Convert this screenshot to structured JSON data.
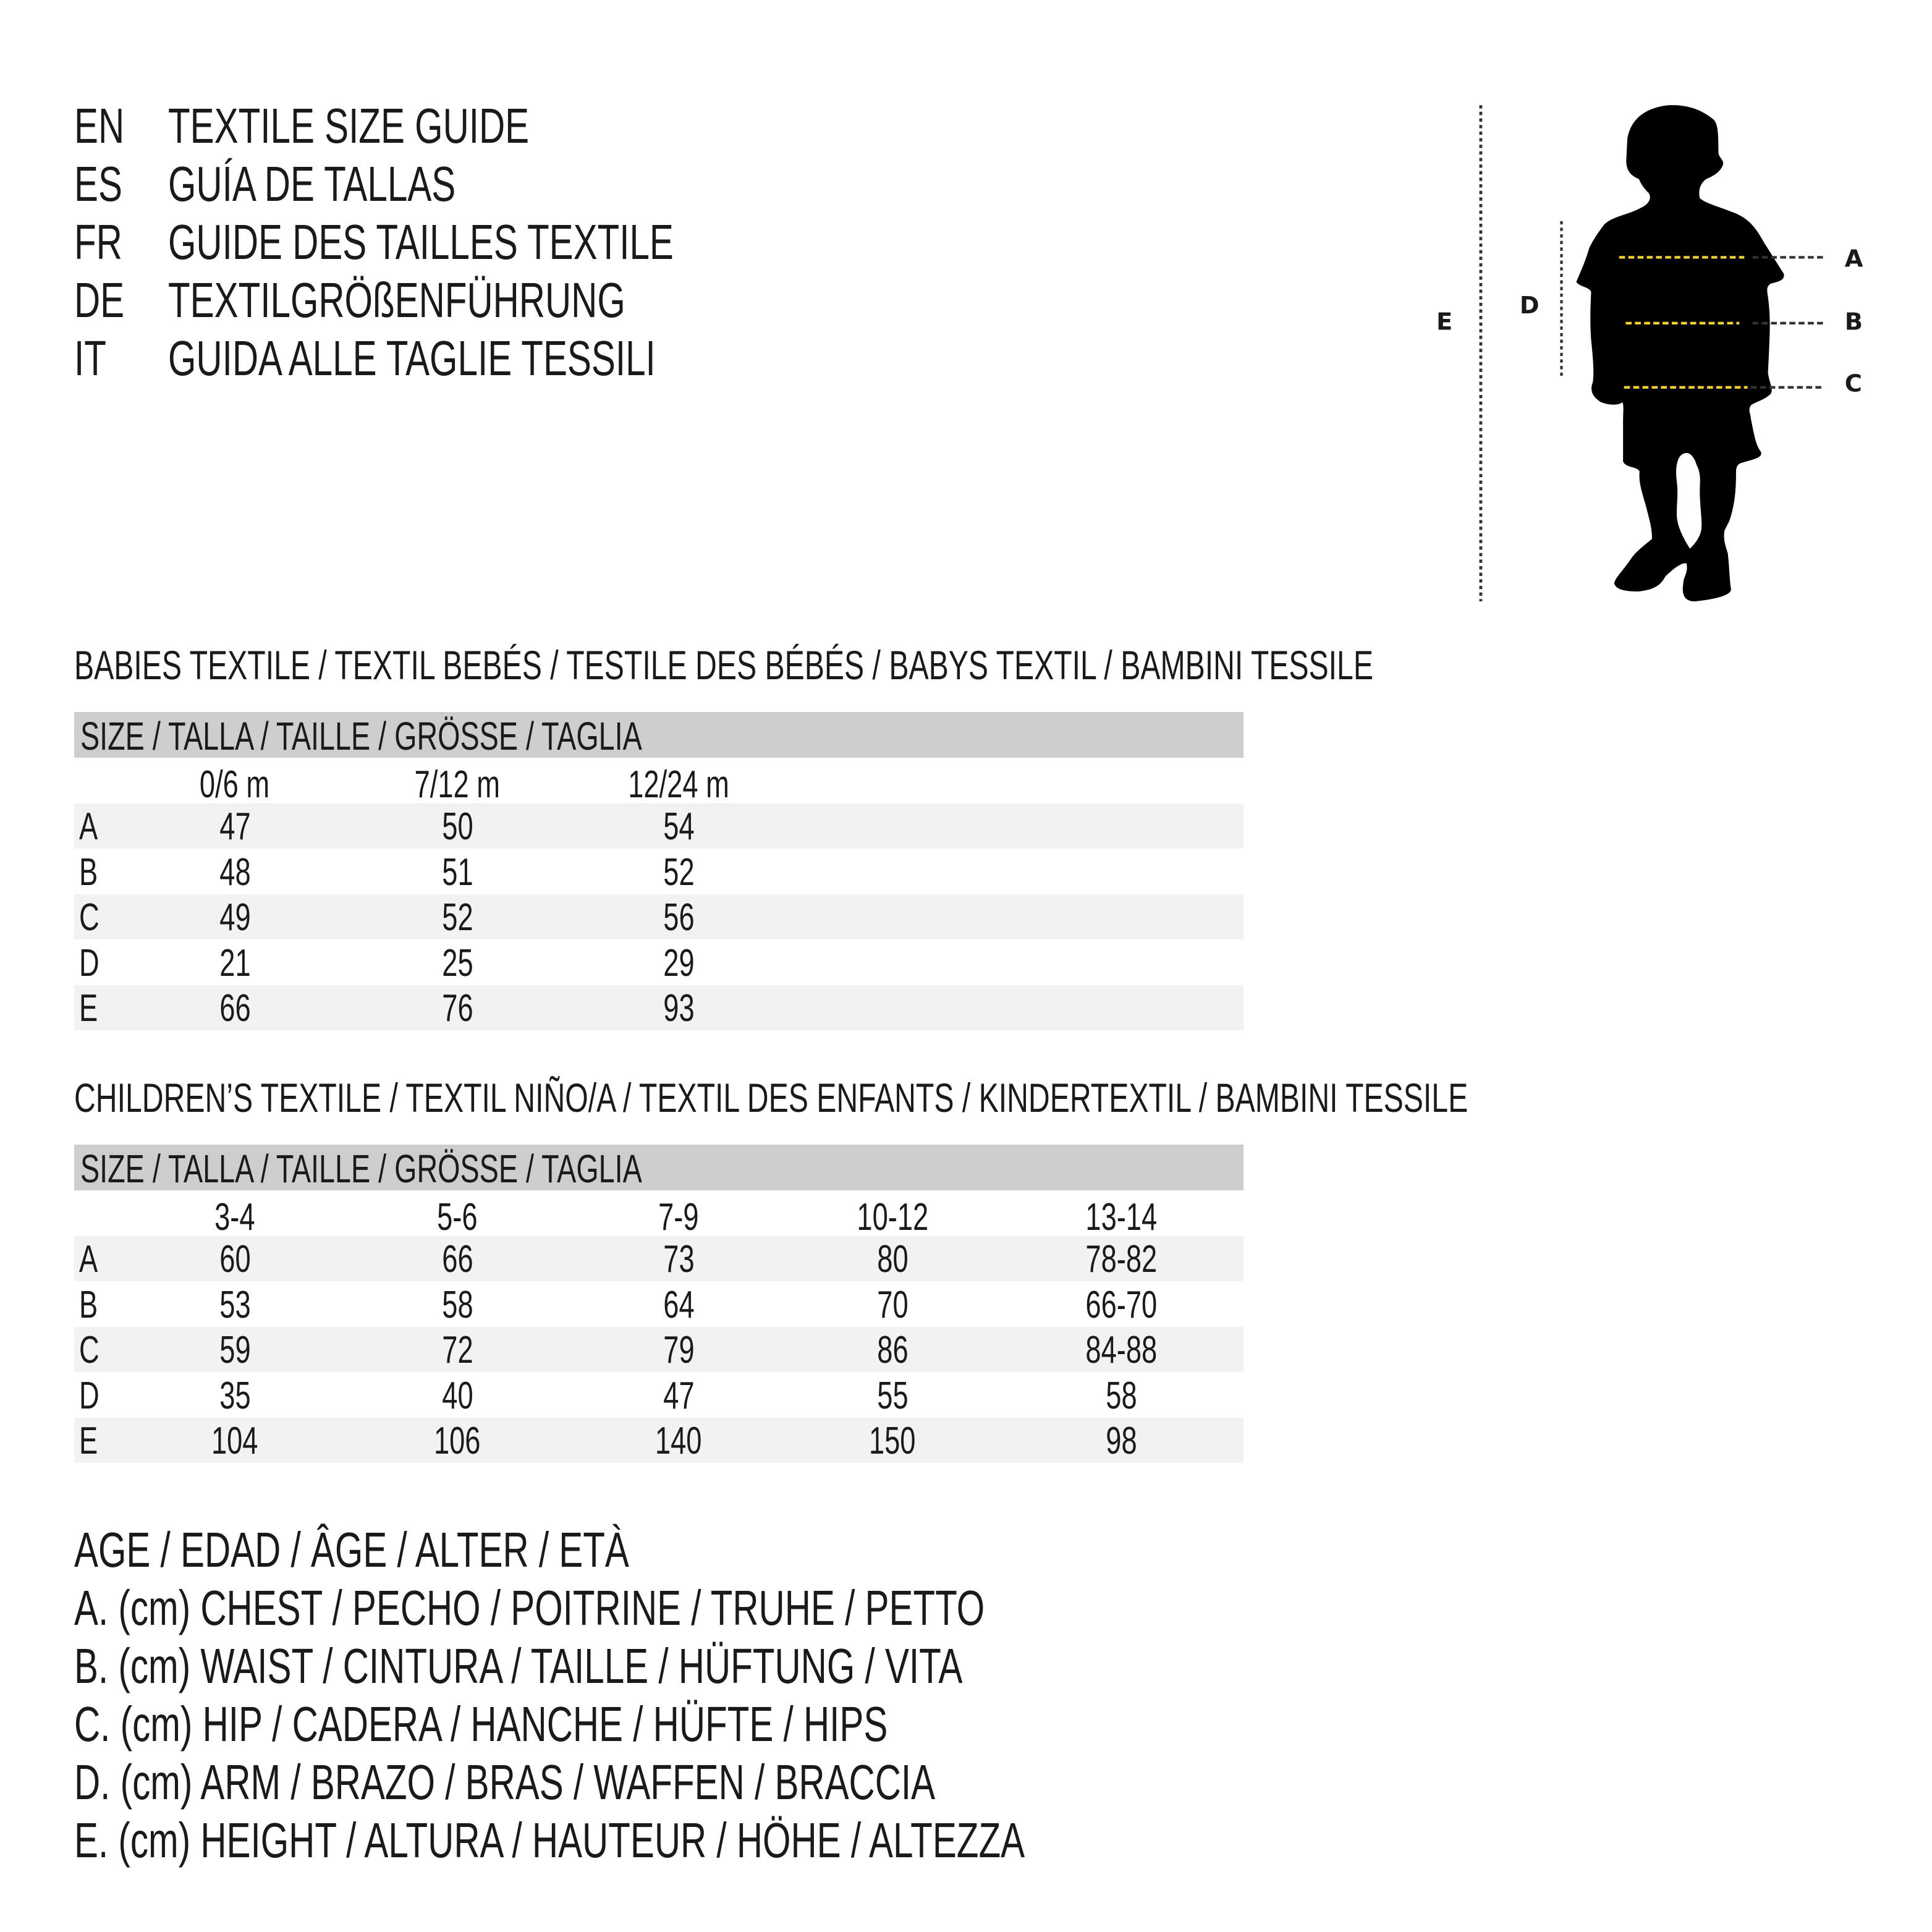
{
  "header": {
    "lines": [
      {
        "code": "EN",
        "text": "TEXTILE SIZE GUIDE"
      },
      {
        "code": "ES",
        "text": "GUÍA DE TALLAS"
      },
      {
        "code": "FR",
        "text": "GUIDE DES TAILLES TEXTILE"
      },
      {
        "code": "DE",
        "text": "TEXTILGRÖßENFÜHRUNG"
      },
      {
        "code": "IT",
        "text": "GUIDA ALLE TAGLIE TESSILI"
      }
    ]
  },
  "figure": {
    "labels": {
      "A": "A",
      "B": "B",
      "C": "C",
      "D": "D",
      "E": "E"
    },
    "accent_color": "#f2d12a",
    "silhouette_color": "#000000"
  },
  "babies": {
    "title": "BABIES TEXTILE / TEXTIL BEBÉS / TESTILE DES BÉBÉS / BABYS TEXTIL / BAMBINI TESSILE",
    "size_header": "SIZE / TALLA / TAILLE / GRÖSSE / TAGLIA",
    "columns": [
      "0/6 m",
      "7/12 m",
      "12/24 m"
    ],
    "rows": [
      {
        "label": "A",
        "values": [
          "47",
          "50",
          "54"
        ]
      },
      {
        "label": "B",
        "values": [
          "48",
          "51",
          "52"
        ]
      },
      {
        "label": "C",
        "values": [
          "49",
          "52",
          "56"
        ]
      },
      {
        "label": "D",
        "values": [
          "21",
          "25",
          "29"
        ]
      },
      {
        "label": "E",
        "values": [
          "66",
          "76",
          "93"
        ]
      }
    ]
  },
  "children": {
    "title": "CHILDREN’S TEXTILE / TEXTIL NIÑO/A / TEXTIL DES ENFANTS / KINDERTEXTIL / BAMBINI TESSILE",
    "size_header": "SIZE / TALLA / TAILLE / GRÖSSE / TAGLIA",
    "columns": [
      "3-4",
      "5-6",
      "7-9",
      "10-12",
      "13-14"
    ],
    "rows": [
      {
        "label": "A",
        "values": [
          "60",
          "66",
          "73",
          "80",
          "78-82"
        ]
      },
      {
        "label": "B",
        "values": [
          "53",
          "58",
          "64",
          "70",
          "66-70"
        ]
      },
      {
        "label": "C",
        "values": [
          "59",
          "72",
          "79",
          "86",
          "84-88"
        ]
      },
      {
        "label": "D",
        "values": [
          "35",
          "40",
          "47",
          "55",
          "58"
        ]
      },
      {
        "label": "E",
        "values": [
          "104",
          "106",
          "140",
          "150",
          "98"
        ]
      }
    ]
  },
  "legend": [
    "AGE / EDAD / ÂGE / ALTER / ETÀ",
    "A. (cm) CHEST / PECHO / POITRINE / TRUHE / PETTO",
    "B. (cm) WAIST / CINTURA / TAILLE / HÜFTUNG / VITA",
    "C. (cm) HIP / CADERA / HANCHE / HÜFTE / HIPS",
    "D. (cm) ARM / BRAZO / BRAS / WAFFEN / BRACCIA",
    "E. (cm) HEIGHT / ALTURA / HAUTEUR / HÖHE / ALTEZZA"
  ]
}
